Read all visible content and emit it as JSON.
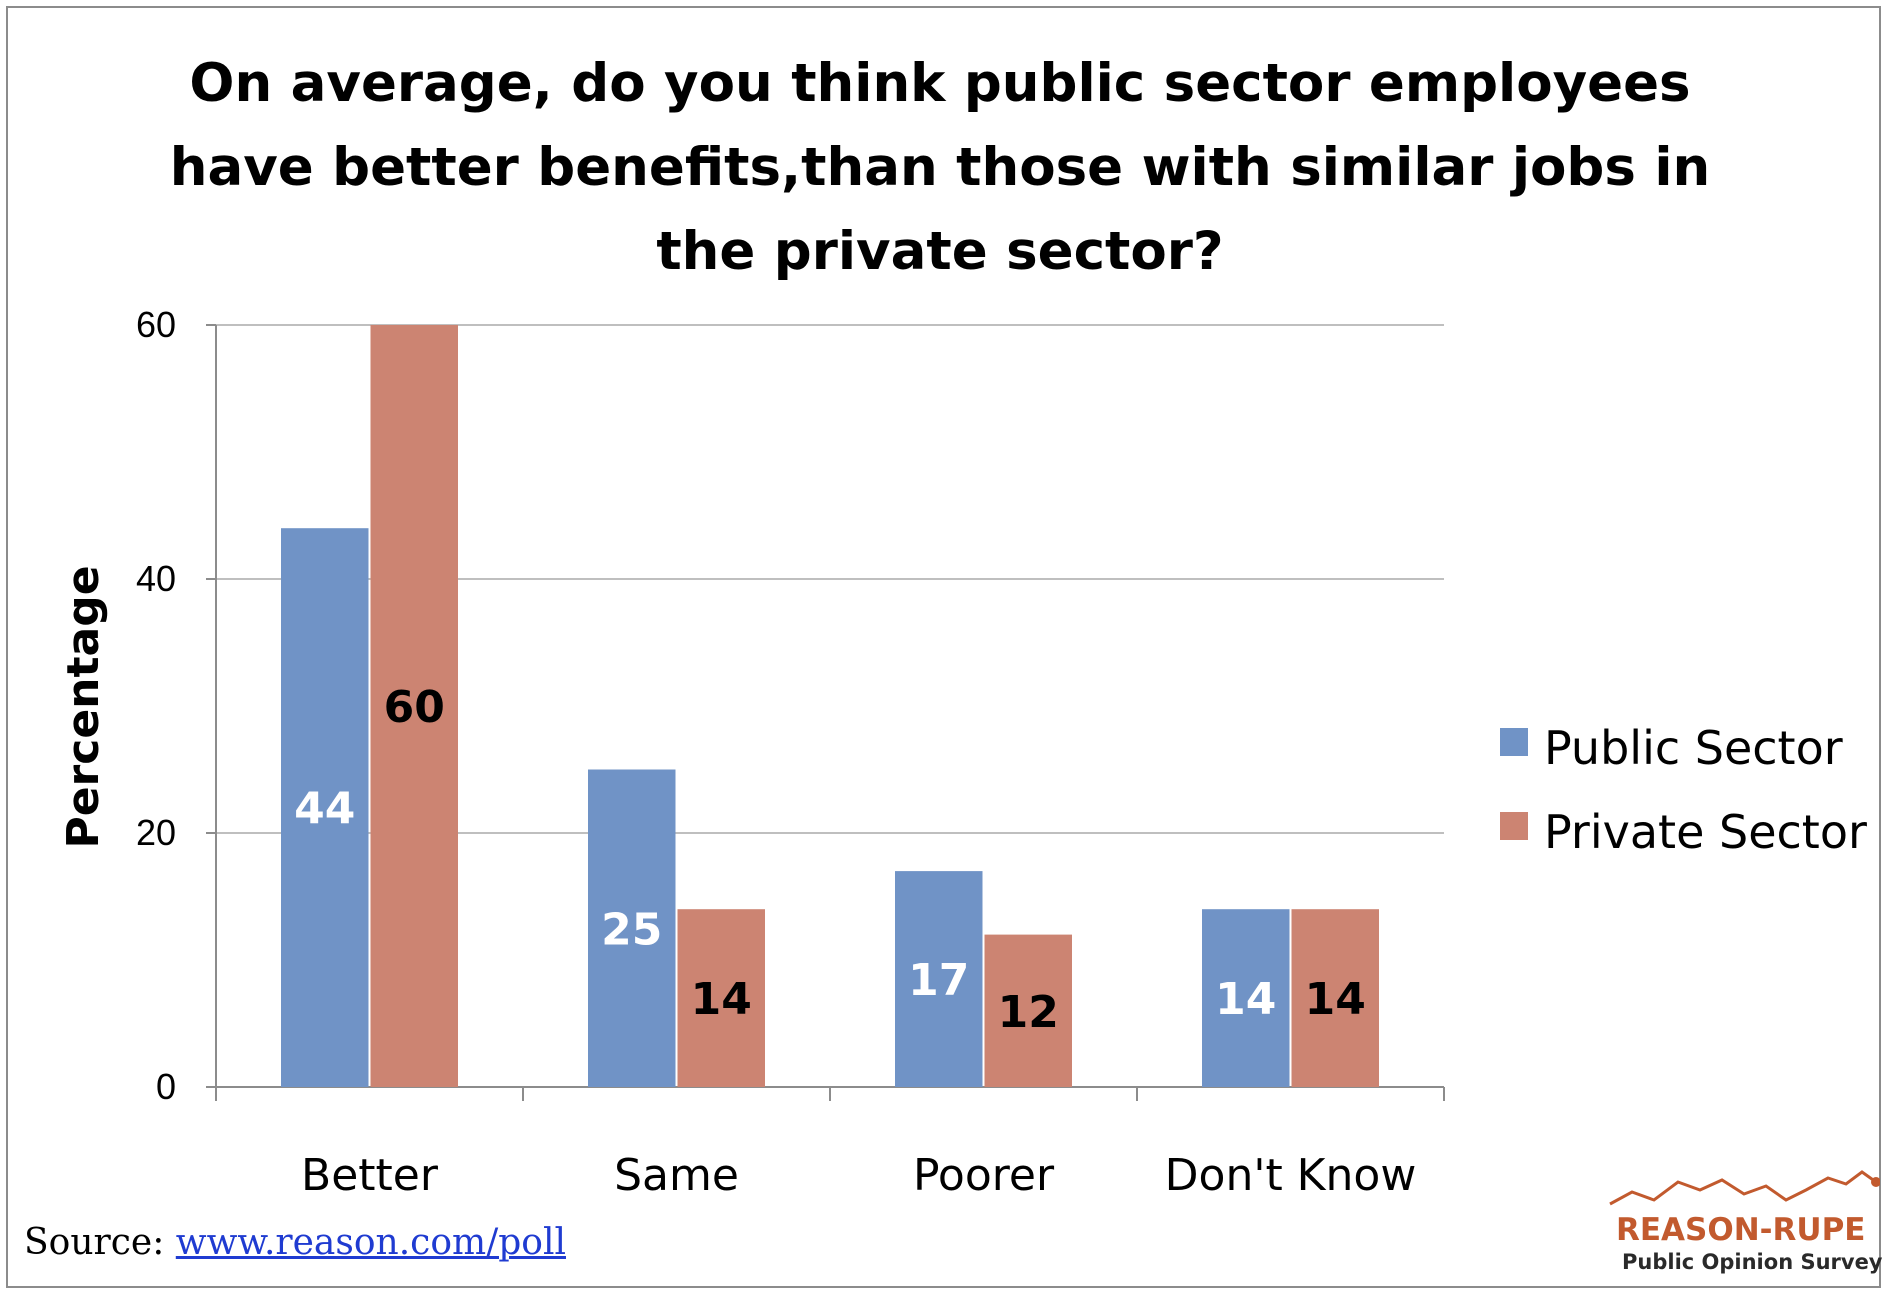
{
  "chart_data": {
    "type": "bar",
    "title_lines": [
      "On average, do you think public sector employees",
      "have better benefits,than those with similar jobs in",
      "the private sector?"
    ],
    "ylabel": "Percentage",
    "xlabel": "",
    "ylim": [
      0,
      60
    ],
    "yticks": [
      "0",
      "20",
      "40",
      "60"
    ],
    "grid": true,
    "legend_position": "right",
    "categories": [
      "Better",
      "Same",
      "Poorer",
      "Don't Know"
    ],
    "series": [
      {
        "name": "Public Sector",
        "color": "#7093c6",
        "label_color": "#ffffff",
        "values": [
          44,
          25,
          17,
          14
        ]
      },
      {
        "name": "Private Sector",
        "color": "#cc8472",
        "label_color": "#000000",
        "values": [
          60,
          14,
          12,
          14
        ]
      }
    ],
    "data_labels": [
      [
        "44",
        "25",
        "17",
        "14"
      ],
      [
        "60",
        "14",
        "12",
        "14"
      ]
    ]
  },
  "source": {
    "label": "Source:",
    "link_text": "www.reason.com/poll"
  },
  "logo": {
    "name": "REASON-RUPE",
    "subtitle": "Public Opinion Survey",
    "color": "#c25a2e"
  }
}
